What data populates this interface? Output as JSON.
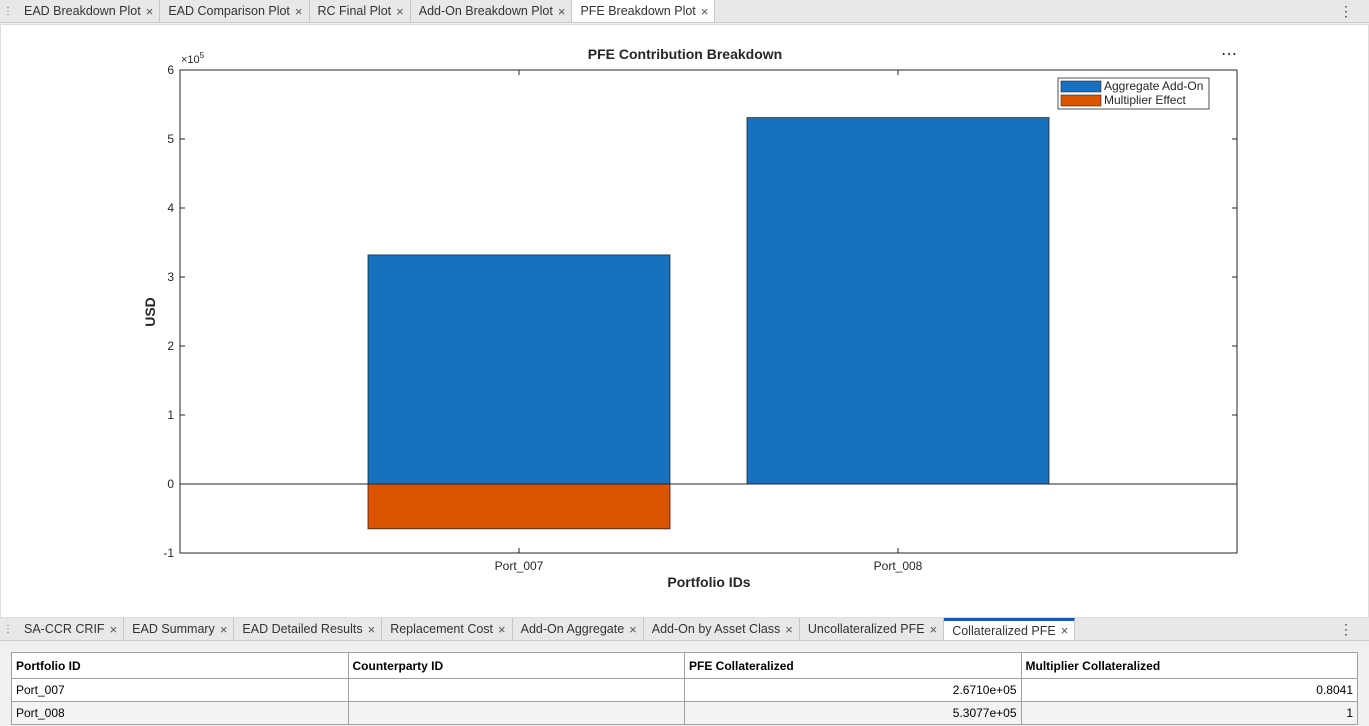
{
  "top_tabs": [
    "EAD Breakdown Plot",
    "EAD Comparison Plot",
    "RC Final Plot",
    "Add-On Breakdown Plot",
    "PFE Breakdown Plot"
  ],
  "top_active": 4,
  "chart_data": {
    "type": "bar",
    "stacked": true,
    "title": "PFE Contribution Breakdown",
    "xlabel": "Portfolio IDs",
    "ylabel": "USD",
    "y_exponent": {
      "base": "×10",
      "power": "5"
    },
    "categories": [
      "Port_007",
      "Port_008"
    ],
    "series": [
      {
        "name": "Aggregate Add-On",
        "color": "#1771c0",
        "values": [
          3.32,
          5.31
        ]
      },
      {
        "name": "Multiplier Effect",
        "color": "#dd5400",
        "values": [
          -0.65,
          0
        ]
      }
    ],
    "ylim": [
      -1,
      6
    ],
    "yticks": [
      -1,
      0,
      1,
      2,
      3,
      4,
      5,
      6
    ],
    "legend": "northeast",
    "grid": false
  },
  "bottom_tabs": [
    "SA-CCR CRIF",
    "EAD Summary",
    "EAD Detailed Results",
    "Replacement Cost",
    "Add-On Aggregate",
    "Add-On by Asset Class",
    "Uncollateralized PFE",
    "Collateralized PFE"
  ],
  "bottom_active": 7,
  "table": {
    "columns": [
      "Portfolio ID",
      "Counterparty ID",
      "PFE Collateralized",
      "Multiplier Collateralized"
    ],
    "rows": [
      [
        "Port_007",
        "",
        "2.6710e+05",
        "0.8041"
      ],
      [
        "Port_008",
        "",
        "5.3077e+05",
        "1"
      ]
    ]
  }
}
